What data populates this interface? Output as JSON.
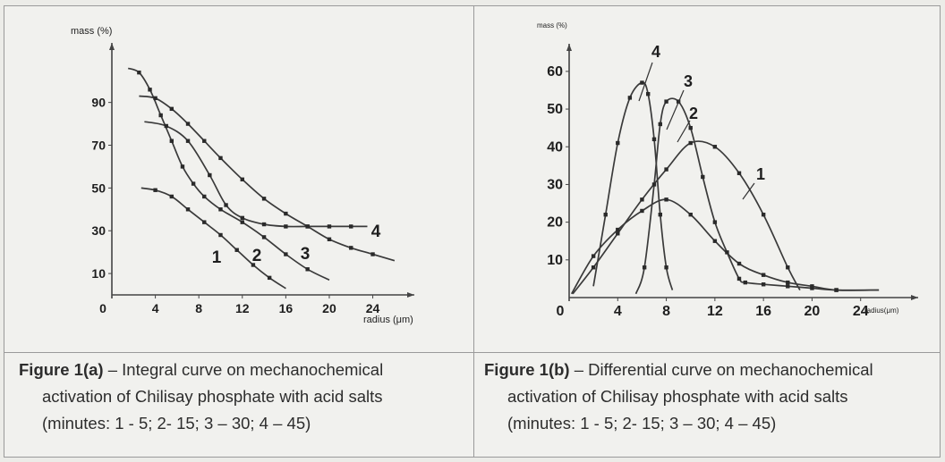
{
  "chart_data": [
    {
      "type": "line",
      "ylabel": "mass (%)",
      "xlabel": "radius (μm)",
      "x_ticks": [
        "4",
        "8",
        "12",
        "16",
        "20",
        "24"
      ],
      "y_ticks": [
        "10",
        "30",
        "50",
        "70",
        "90"
      ],
      "origin_label": "0",
      "xlim": [
        0,
        27
      ],
      "ylim": [
        0,
        112
      ],
      "series": [
        {
          "name": "1",
          "x": [
            2.7,
            4,
            5.5,
            7,
            8.5,
            10,
            11.5,
            13,
            14.5,
            16
          ],
          "y": [
            50,
            49,
            46,
            40,
            34,
            28,
            21,
            14,
            8,
            3
          ]
        },
        {
          "name": "2",
          "x": [
            1.5,
            2.5,
            3.5,
            4.5,
            5.5,
            6.5,
            7.5,
            8.5,
            10,
            12,
            14,
            16,
            18,
            20
          ],
          "y": [
            106,
            104,
            96,
            84,
            72,
            60,
            52,
            46,
            40,
            34,
            27,
            19,
            12,
            7
          ]
        },
        {
          "name": "3",
          "x": [
            2.5,
            4,
            5.5,
            7,
            8.5,
            10,
            12,
            14,
            16,
            18,
            20,
            22,
            24,
            26
          ],
          "y": [
            93,
            92,
            87,
            80,
            72,
            64,
            54,
            45,
            38,
            32,
            26,
            22,
            19,
            16
          ]
        },
        {
          "name": "4",
          "x": [
            3,
            5,
            7,
            9,
            10.5,
            12,
            14,
            16,
            18,
            20,
            22,
            23.5
          ],
          "y": [
            81,
            79,
            72,
            56,
            42,
            36,
            33,
            32,
            32,
            32,
            32,
            32
          ]
        }
      ],
      "labels": [
        "1",
        "2",
        "3",
        "4"
      ]
    },
    {
      "type": "line",
      "ylabel": "mass (%)",
      "xlabel": "radius(μm)",
      "x_ticks": [
        "4",
        "8",
        "12",
        "16",
        "20",
        "24"
      ],
      "y_ticks": [
        "10",
        "20",
        "30",
        "40",
        "50",
        "60"
      ],
      "origin_label": "0",
      "xlim": [
        0,
        28
      ],
      "ylim": [
        0,
        64
      ],
      "series": [
        {
          "name": "1",
          "x": [
            0.3,
            2,
            4,
            6,
            8,
            10,
            12,
            14,
            16,
            18,
            19
          ],
          "y": [
            1,
            8,
            17,
            26,
            34,
            41,
            40,
            33,
            22,
            8,
            2
          ]
        },
        {
          "name": "2",
          "x": [
            0.2,
            2,
            4,
            6,
            8,
            10,
            12,
            14,
            16,
            18,
            20,
            22,
            25.5
          ],
          "y": [
            1,
            11,
            18,
            23,
            26,
            22,
            15,
            9,
            6,
            4,
            3,
            2,
            2
          ]
        },
        {
          "name": "3",
          "x": [
            5.5,
            6.2,
            7,
            7.5,
            8,
            9,
            10,
            11,
            12,
            13,
            14,
            14.5,
            16,
            18,
            20,
            22,
            25.5
          ],
          "y": [
            1,
            8,
            30,
            46,
            52,
            52,
            45,
            32,
            20,
            12,
            5,
            4,
            3.5,
            3,
            2.5,
            2,
            2
          ]
        },
        {
          "name": "4",
          "x": [
            2,
            3,
            4,
            5,
            6,
            6.5,
            7,
            7.5,
            8,
            8.5
          ],
          "y": [
            3,
            22,
            41,
            53,
            57,
            54,
            42,
            22,
            8,
            2
          ]
        }
      ],
      "labels": [
        "1",
        "2",
        "3",
        "4"
      ]
    }
  ],
  "captions": [
    {
      "fig": "Figure 1(a)",
      "line1": " – Integral curve on mechanochemical",
      "line2": "activation of Chilisay phosphate with acid salts",
      "line3": "(minutes: 1 - 5; 2- 15; 3 – 30; 4 – 45)"
    },
    {
      "fig": "Figure 1(b)",
      "line1": " – Differential curve on mechanochemical",
      "line2": "activation of Chilisay phosphate with acid salts",
      "line3": "(minutes: 1 - 5; 2- 15; 3 – 30; 4 – 45)"
    }
  ]
}
